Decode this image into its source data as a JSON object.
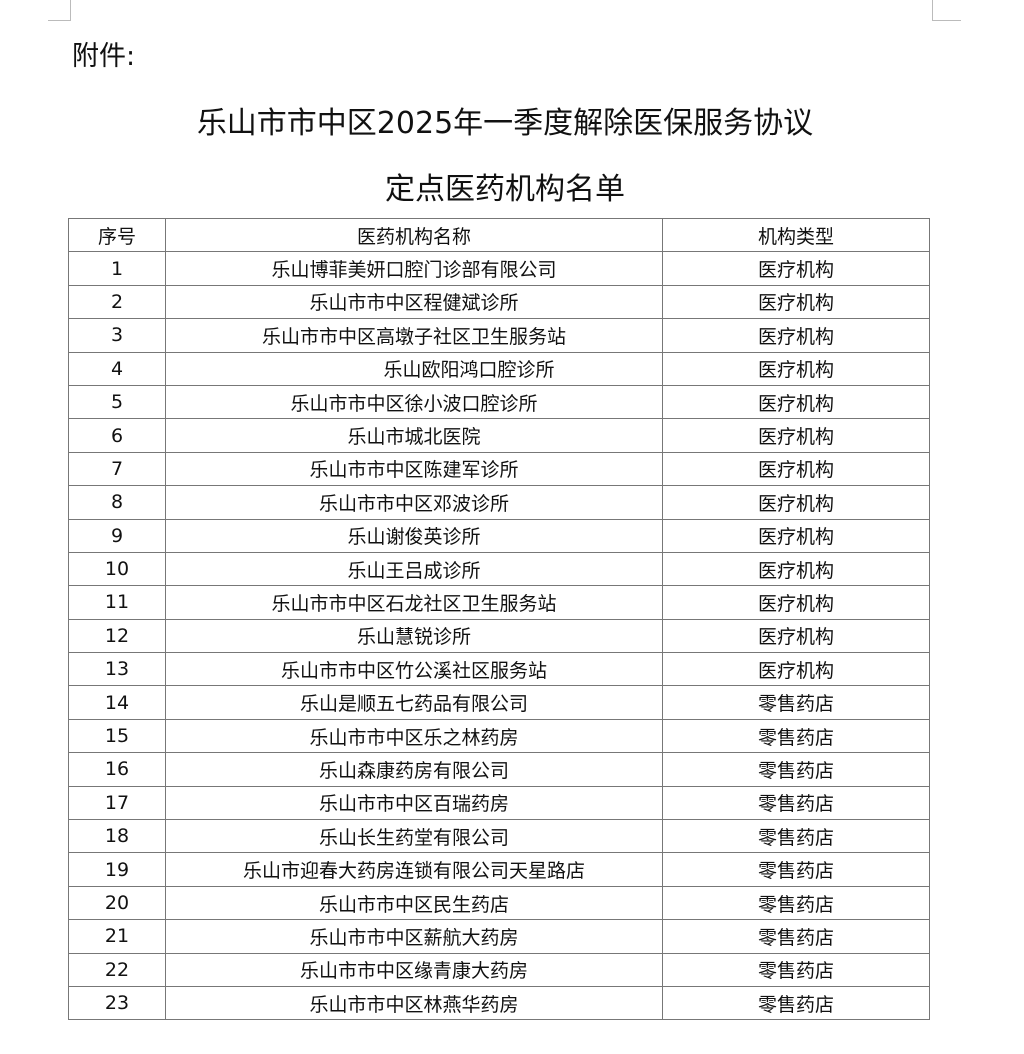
{
  "attachment_label": "附件:",
  "title_line1": "乐山市市中区2025年一季度解除医保服务协议",
  "title_line2": "定点医药机构名单",
  "table": {
    "headers": [
      "序号",
      "医药机构名称",
      "机构类型"
    ],
    "rows": [
      [
        "1",
        "乐山博菲美妍口腔门诊部有限公司",
        "医疗机构"
      ],
      [
        "2",
        "乐山市市中区程健斌诊所",
        "医疗机构"
      ],
      [
        "3",
        "乐山市市中区高墩子社区卫生服务站",
        "医疗机构"
      ],
      [
        "4",
        "乐山欧阳鸿口腔诊所",
        "医疗机构"
      ],
      [
        "5",
        "乐山市市中区徐小波口腔诊所",
        "医疗机构"
      ],
      [
        "6",
        "乐山市城北医院",
        "医疗机构"
      ],
      [
        "7",
        "乐山市市中区陈建军诊所",
        "医疗机构"
      ],
      [
        "8",
        "乐山市市中区邓波诊所",
        "医疗机构"
      ],
      [
        "9",
        "乐山谢俊英诊所",
        "医疗机构"
      ],
      [
        "10",
        "乐山王吕成诊所",
        "医疗机构"
      ],
      [
        "11",
        "乐山市市中区石龙社区卫生服务站",
        "医疗机构"
      ],
      [
        "12",
        "乐山慧锐诊所",
        "医疗机构"
      ],
      [
        "13",
        "乐山市市中区竹公溪社区服务站",
        "医疗机构"
      ],
      [
        "14",
        "乐山是顺五七药品有限公司",
        "零售药店"
      ],
      [
        "15",
        "乐山市市中区乐之林药房",
        "零售药店"
      ],
      [
        "16",
        "乐山森康药房有限公司",
        "零售药店"
      ],
      [
        "17",
        "乐山市市中区百瑞药房",
        "零售药店"
      ],
      [
        "18",
        "乐山长生药堂有限公司",
        "零售药店"
      ],
      [
        "19",
        "乐山市迎春大药房连锁有限公司天星路店",
        "零售药店"
      ],
      [
        "20",
        "乐山市市中区民生药店",
        "零售药店"
      ],
      [
        "21",
        "乐山市市中区薪航大药房",
        "零售药店"
      ],
      [
        "22",
        "乐山市市中区缘青康大药房",
        "零售药店"
      ],
      [
        "23",
        "乐山市市中区林燕华药房",
        "零售药店"
      ]
    ]
  }
}
